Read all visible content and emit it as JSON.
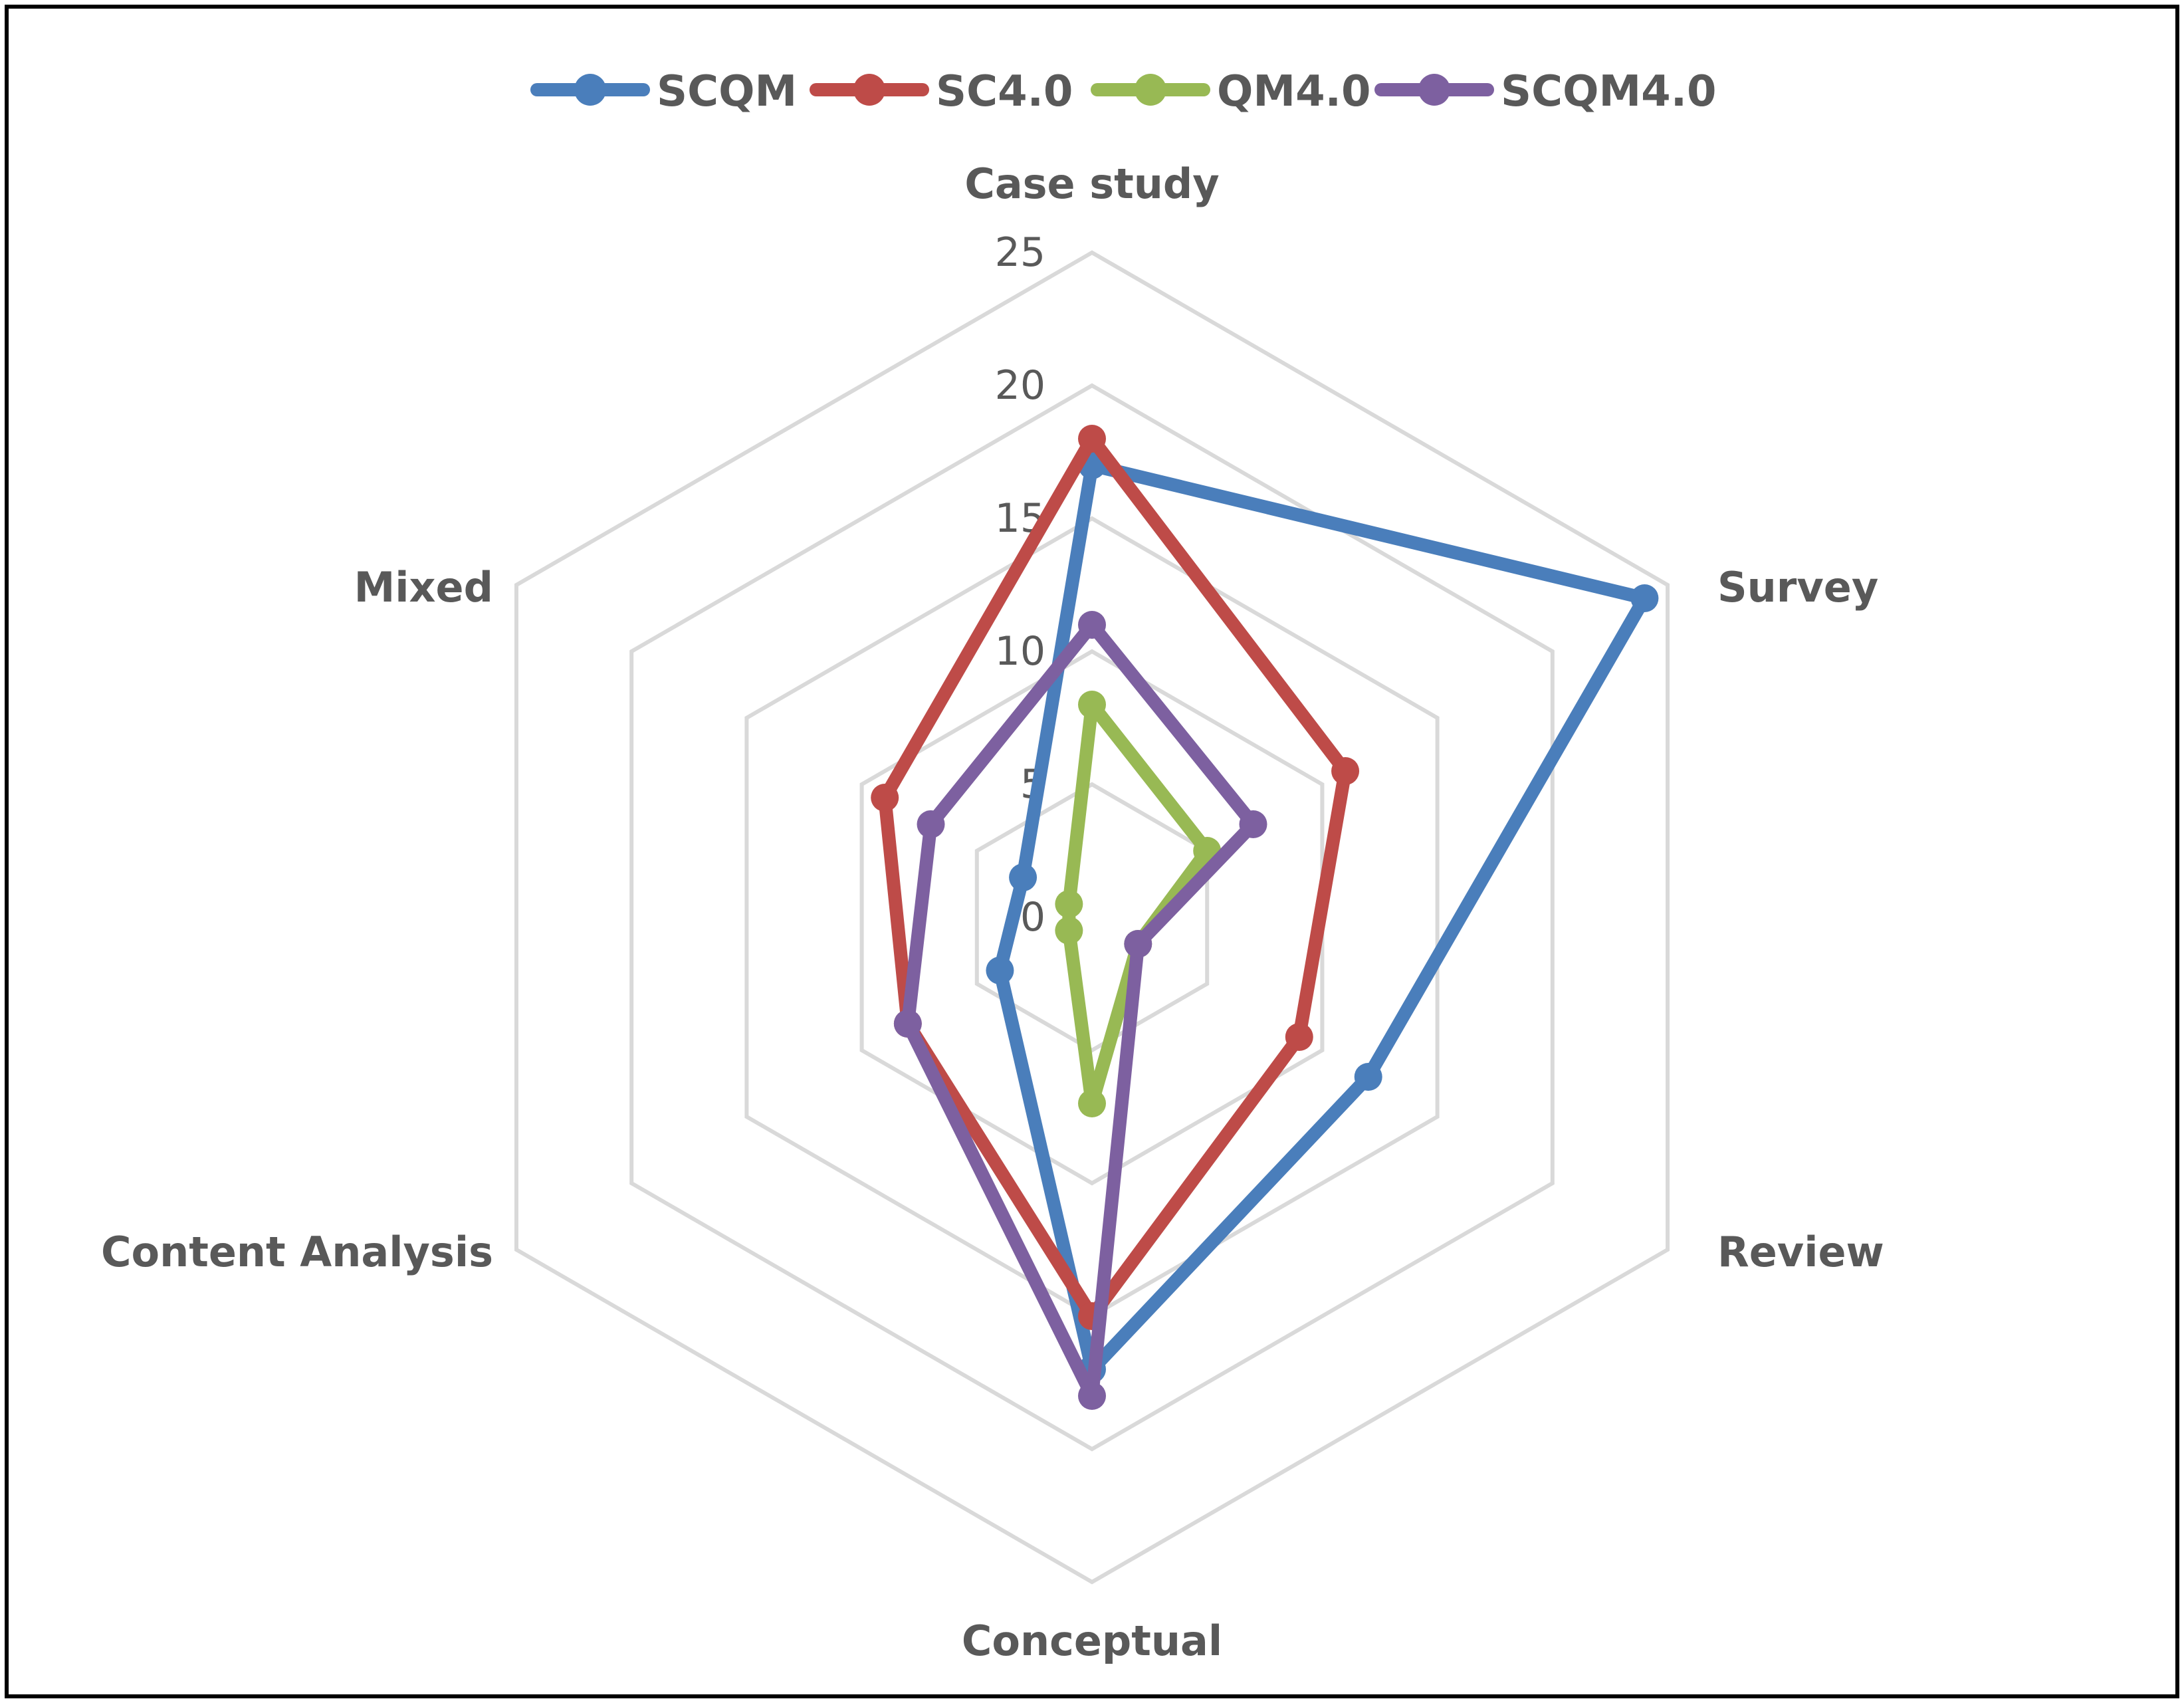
{
  "chart_data": {
    "type": "radar",
    "title": "",
    "axes": [
      "Case study",
      "Survey",
      "Review",
      "Conceptual",
      "Content Analysis",
      "Mixed"
    ],
    "rlim": [
      0,
      25
    ],
    "ticks": [
      "0",
      "5",
      "10",
      "15",
      "20",
      "25"
    ],
    "tick_values": [
      0,
      5,
      10,
      15,
      20,
      25
    ],
    "grid": true,
    "legend_position": "top",
    "series": [
      {
        "name": "SCQM",
        "color": "#4a7ebb",
        "values": [
          17,
          24,
          12,
          17,
          4,
          3
        ]
      },
      {
        "name": "SC4.0",
        "color": "#be4b48",
        "values": [
          18,
          11,
          9,
          15,
          8,
          9
        ]
      },
      {
        "name": "QM4.0",
        "color": "#98b954",
        "values": [
          8,
          5,
          2,
          7,
          1,
          1
        ]
      },
      {
        "name": "SCQM4.0",
        "color": "#7d60a0",
        "values": [
          11,
          7,
          2,
          18,
          8,
          7
        ]
      }
    ],
    "gridline_color": "#d9d9d9",
    "label_color": "#595959"
  }
}
